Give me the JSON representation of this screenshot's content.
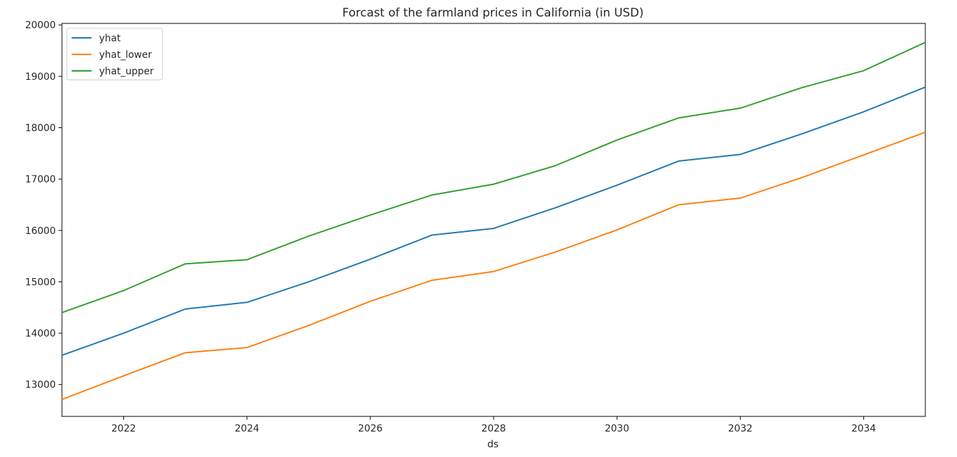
{
  "chart_data": {
    "type": "line",
    "title": "Forcast of the farmland prices in California (in USD)",
    "xlabel": "ds",
    "ylabel": "",
    "xlim": [
      2021,
      2035
    ],
    "ylim": [
      12380,
      20030
    ],
    "x_ticks": [
      "2022",
      "2024",
      "2026",
      "2028",
      "2030",
      "2032",
      "2034"
    ],
    "y_ticks": [
      "13000",
      "14000",
      "15000",
      "16000",
      "17000",
      "18000",
      "19000",
      "20000"
    ],
    "grid": false,
    "legend_position": "top-left",
    "x": [
      2021,
      2022,
      2023,
      2024,
      2025,
      2026,
      2027,
      2028,
      2029,
      2030,
      2031,
      2032,
      2033,
      2034,
      2035
    ],
    "series": [
      {
        "name": "yhat",
        "color": "#1f77b4",
        "values": [
          13570,
          14000,
          14470,
          14600,
          15000,
          15440,
          15910,
          16040,
          16440,
          16880,
          17350,
          17480,
          17880,
          18310,
          18790
        ]
      },
      {
        "name": "yhat_lower",
        "color": "#ff7f0e",
        "values": [
          12710,
          13170,
          13620,
          13720,
          14150,
          14620,
          15030,
          15200,
          15580,
          16010,
          16500,
          16630,
          17030,
          17470,
          17910
        ]
      },
      {
        "name": "yhat_upper",
        "color": "#2ca02c",
        "values": [
          14400,
          14830,
          15350,
          15430,
          15890,
          16300,
          16690,
          16900,
          17260,
          17760,
          18190,
          18380,
          18780,
          19110,
          19660
        ]
      }
    ]
  }
}
